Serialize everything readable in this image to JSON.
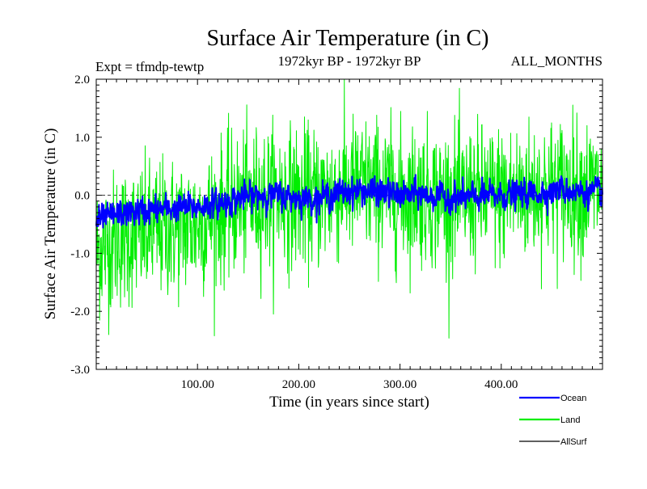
{
  "chart_data": {
    "type": "line",
    "title": "Surface Air Temperature (in C)",
    "subtitle_left": "Expt = tfmdp-tewtp",
    "subtitle_center": "1972kyr BP - 1972kyr BP",
    "subtitle_right": "ALL_MONTHS",
    "xlabel": "Time (in years since start)",
    "ylabel": "Surface Air Temperature (in C)",
    "xlim": [
      0,
      500
    ],
    "ylim": [
      -3.0,
      2.0
    ],
    "x_ticks": [
      100,
      200,
      300,
      400
    ],
    "x_tick_labels": [
      "100.00",
      "200.00",
      "300.00",
      "400.00"
    ],
    "y_ticks": [
      -3.0,
      -2.0,
      -1.0,
      0.0,
      1.0,
      2.0
    ],
    "y_tick_labels": [
      "-3.0",
      "-2.0",
      "-1.0",
      "0.0",
      "1.0",
      "2.0"
    ],
    "reference_line": 0.0,
    "series": [
      {
        "name": "Ocean",
        "color": "#0000ff",
        "x": [
          0,
          20,
          40,
          60,
          80,
          100,
          120,
          140,
          160,
          180,
          200,
          220,
          240,
          260,
          280,
          300,
          320,
          340,
          360,
          380,
          400,
          420,
          440,
          460,
          480,
          500
        ],
        "values": [
          -0.45,
          -0.33,
          -0.28,
          -0.25,
          -0.22,
          -0.2,
          -0.15,
          -0.05,
          0.0,
          0.0,
          -0.05,
          -0.05,
          0.05,
          0.08,
          0.05,
          0.0,
          0.02,
          -0.03,
          -0.05,
          -0.02,
          0.0,
          0.02,
          0.05,
          0.1,
          0.05,
          0.05
        ],
        "noise": 0.11
      },
      {
        "name": "Land",
        "color": "#00ee00",
        "x": [
          0,
          20,
          40,
          60,
          80,
          100,
          120,
          140,
          160,
          180,
          200,
          220,
          240,
          260,
          280,
          300,
          320,
          340,
          360,
          380,
          400,
          420,
          440,
          460,
          480,
          500
        ],
        "values": [
          -0.95,
          -0.75,
          -0.68,
          -0.6,
          -0.55,
          -0.5,
          -0.3,
          -0.15,
          -0.05,
          0.0,
          -0.05,
          -0.05,
          0.1,
          0.15,
          0.1,
          0.0,
          0.05,
          -0.05,
          -0.05,
          0.0,
          0.0,
          0.05,
          0.1,
          0.15,
          0.1,
          0.1
        ],
        "noise": 0.6
      },
      {
        "name": "AllSurf",
        "color": "#000000",
        "x": [],
        "values": []
      }
    ],
    "legend_position": "bottom-right"
  }
}
